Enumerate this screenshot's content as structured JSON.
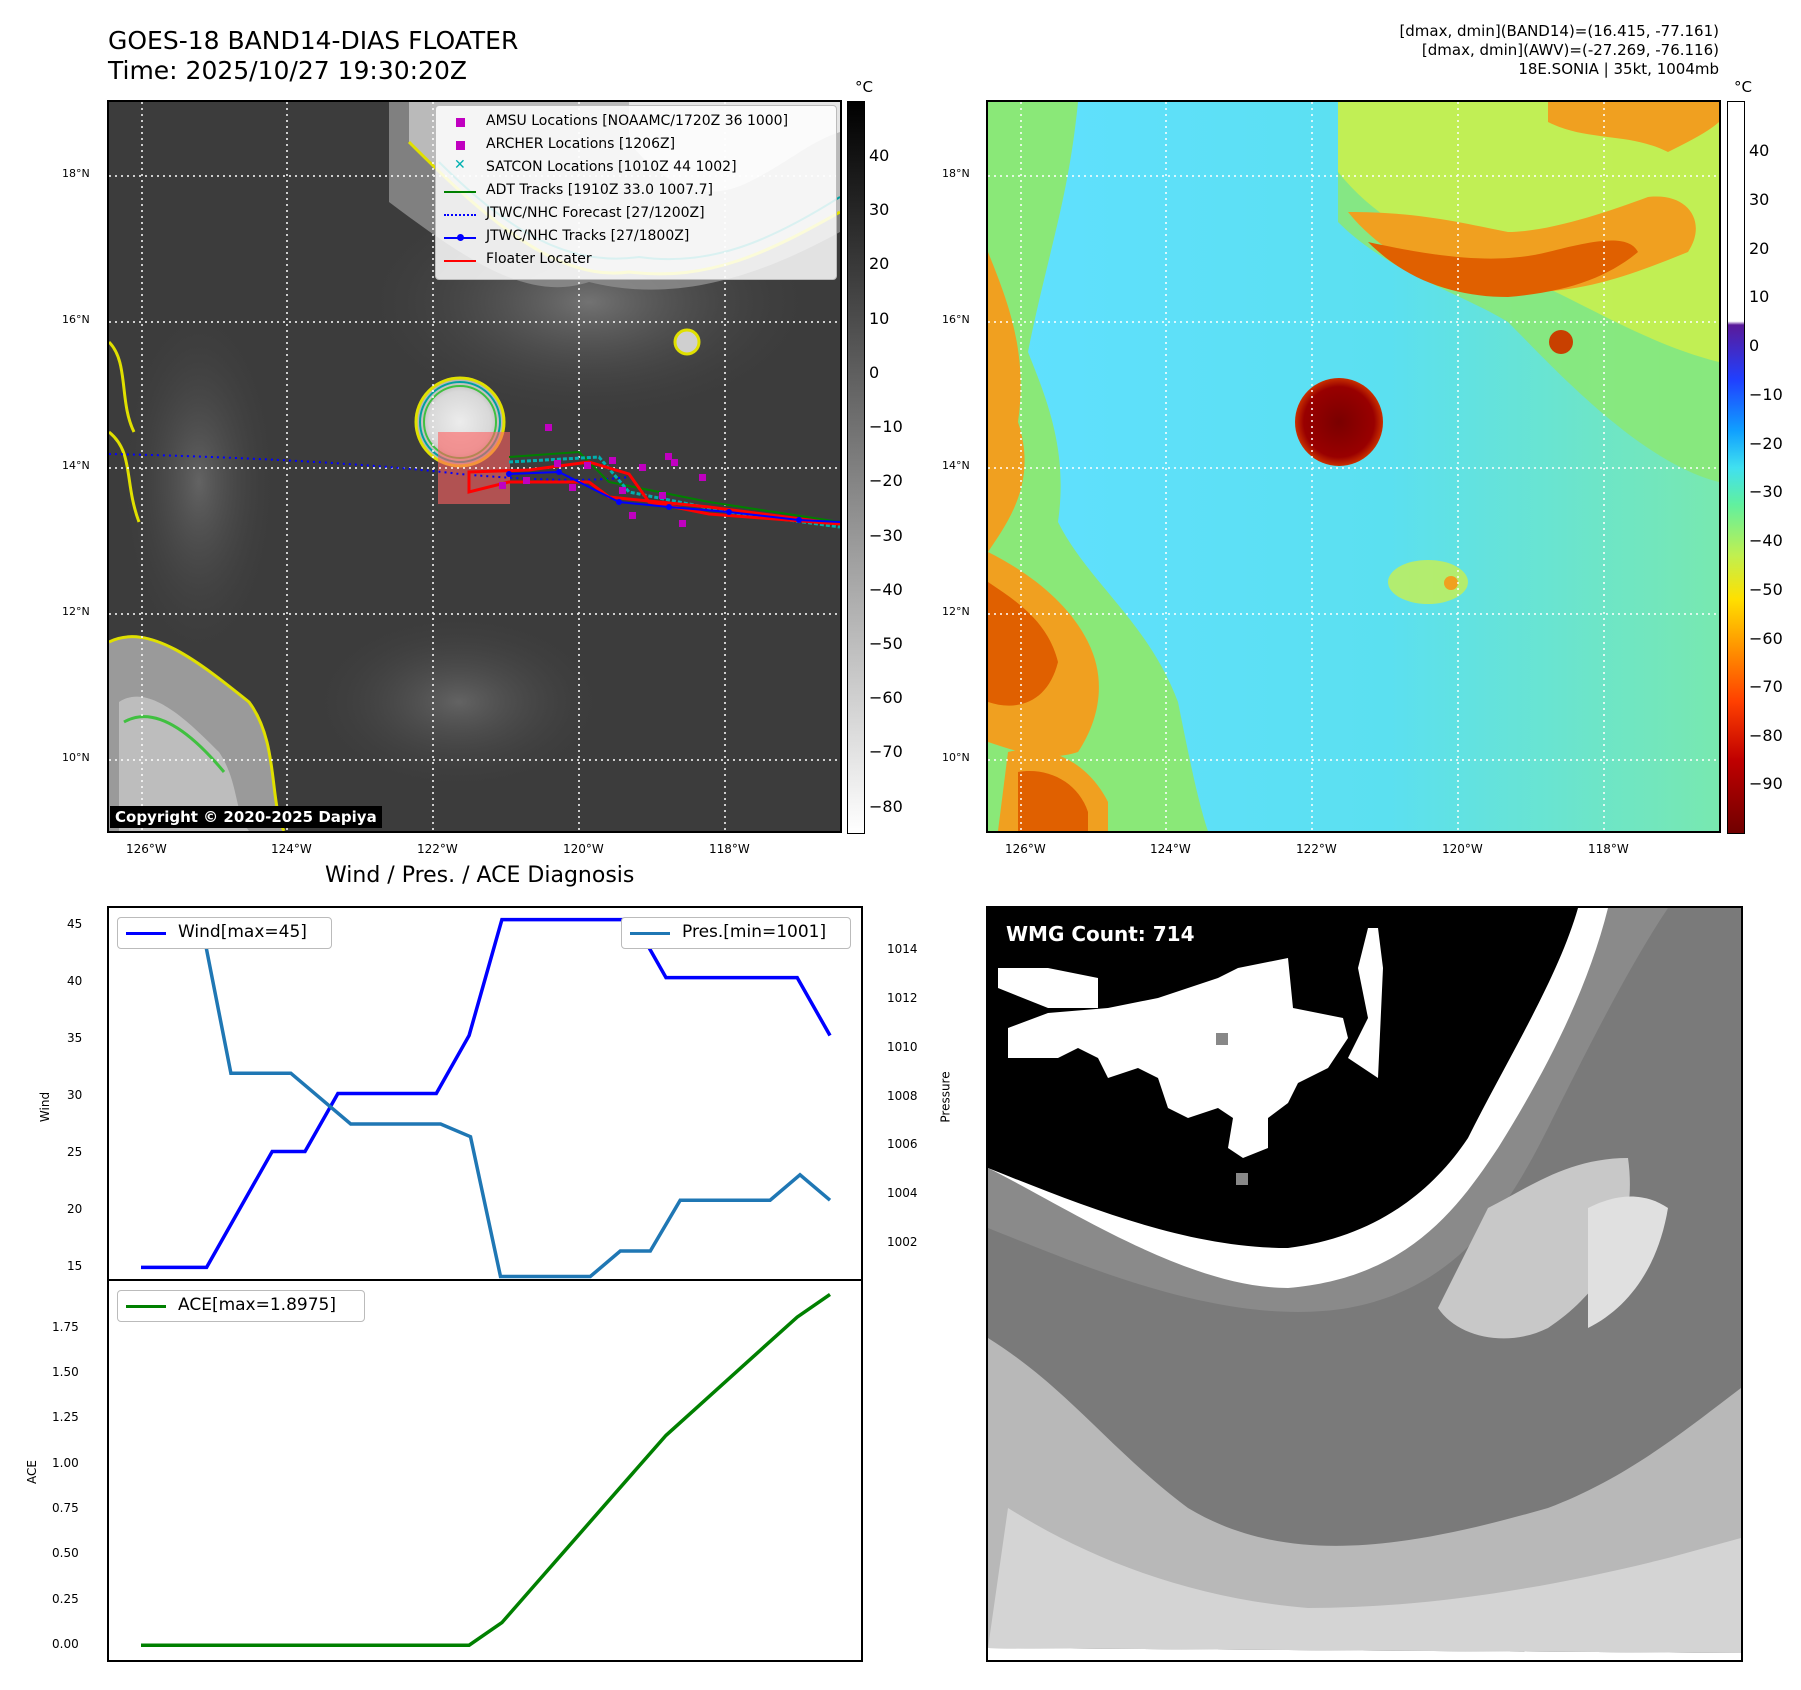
{
  "header": {
    "title_line1": "GOES-18 BAND14-DIAS FLOATER",
    "title_line2": "Time: 2025/10/27 19:30:20Z",
    "stats_line1": "[dmax, dmin](BAND14)=(16.415, -77.161)",
    "stats_line2": "[dmax, dmin](AWV)=(-27.269, -76.116)",
    "stats_line3": "18E.SONIA | 35kt, 1004mb"
  },
  "ir_panel": {
    "copyright": "Copyright © 2020-2025 Dapiya",
    "lat_labels": [
      "18°N",
      "16°N",
      "14°N",
      "12°N",
      "10°N"
    ],
    "lon_labels": [
      "126°W",
      "124°W",
      "122°W",
      "120°W",
      "118°W"
    ],
    "colorbar_unit": "°C",
    "colorbar_ticks": [
      "40",
      "30",
      "20",
      "10",
      "0",
      "−10",
      "−20",
      "−30",
      "−40",
      "−50",
      "−60",
      "−70",
      "−80"
    ],
    "legend": [
      {
        "label": "AMSU Locations [NOAAMC/1720Z 36 1000]",
        "color": "#c000c0",
        "marker": "square"
      },
      {
        "label": "ARCHER Locations [1206Z]",
        "color": "#c000c0",
        "marker": "square"
      },
      {
        "label": "SATCON Locations [1010Z 44 1002]",
        "color": "#00b0b0",
        "marker": "x"
      },
      {
        "label": "ADT Tracks [1910Z 33.0 1007.7]",
        "color": "#008000",
        "marker": "line"
      },
      {
        "label": "JTWC/NHC Forecast [27/1200Z]",
        "color": "#0000ff",
        "marker": "dotted"
      },
      {
        "label": "JTWC/NHC Tracks [27/1800Z]",
        "color": "#0000ff",
        "marker": "line-dot"
      },
      {
        "label": "Floater Locater",
        "color": "#ff0000",
        "marker": "line"
      }
    ]
  },
  "wv_panel": {
    "lat_labels": [
      "18°N",
      "16°N",
      "14°N",
      "12°N",
      "10°N"
    ],
    "lon_labels": [
      "126°W",
      "124°W",
      "122°W",
      "120°W",
      "118°W"
    ],
    "colorbar_unit": "°C",
    "colorbar_ticks": [
      "40",
      "30",
      "20",
      "10",
      "0",
      "−10",
      "−20",
      "−30",
      "−40",
      "−50",
      "−60",
      "−70",
      "−80",
      "−90"
    ]
  },
  "diagnosis": {
    "title": "Wind / Pres. / ACE Diagnosis",
    "wind_ylabel": "Wind",
    "pressure_ylabel": "Pressure",
    "ace_ylabel": "ACE",
    "wind_legend": "Wind[max=45]",
    "pres_legend": "Pres.[min=1001]",
    "ace_legend": "ACE[max=1.8975]",
    "wind_ticks": [
      "45",
      "40",
      "35",
      "30",
      "25",
      "20",
      "15"
    ],
    "pres_ticks": [
      "1014",
      "1012",
      "1010",
      "1008",
      "1006",
      "1004",
      "1002"
    ],
    "ace_ticks": [
      "1.75",
      "1.50",
      "1.25",
      "1.00",
      "0.75",
      "0.50",
      "0.25",
      "0.00"
    ],
    "colors": {
      "wind": "#0000ff",
      "pressure": "#1f77b4",
      "ace": "#008000"
    }
  },
  "wmg_panel": {
    "count_label": "WMG Count: 714"
  },
  "chart_data": [
    {
      "type": "line",
      "title": "Wind / Pres. / ACE Diagnosis",
      "ylabel": "Wind",
      "ylim": [
        14,
        46
      ],
      "series": [
        {
          "name": "Wind[max=45]",
          "values": [
            15,
            15,
            15,
            20,
            25,
            25,
            30,
            30,
            30,
            30,
            35,
            45,
            45,
            45,
            45,
            45,
            40,
            40,
            40,
            40,
            40,
            35
          ]
        }
      ]
    },
    {
      "type": "line",
      "ylabel": "Pressure",
      "ylim": [
        1000.9,
        1015.5
      ],
      "series": [
        {
          "name": "Pres.[min=1001]",
          "values": [
            1015,
            1015,
            1015,
            1009,
            1009,
            1009,
            1008,
            1007,
            1007,
            1007,
            1007,
            1006.5,
            1001,
            1001,
            1001,
            1001,
            1002,
            1002,
            1004,
            1004,
            1004,
            1004,
            1005,
            1004
          ]
        }
      ]
    },
    {
      "type": "line",
      "ylabel": "ACE",
      "ylim": [
        -0.08,
        1.97
      ],
      "series": [
        {
          "name": "ACE[max=1.8975]",
          "values": [
            0,
            0,
            0,
            0,
            0,
            0,
            0,
            0,
            0,
            0,
            0,
            0.1225,
            0.325,
            0.5275,
            0.73,
            0.9325,
            1.135,
            1.295,
            1.455,
            1.615,
            1.775,
            1.8975
          ]
        }
      ]
    }
  ]
}
